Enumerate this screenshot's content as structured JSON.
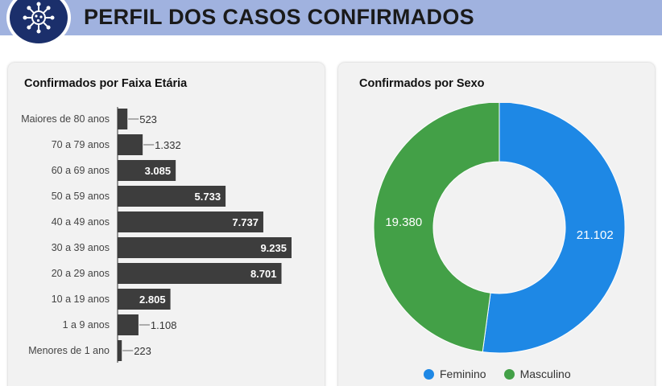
{
  "header": {
    "title": "PERFIL DOS CASOS CONFIRMADOS",
    "logo_icon": "virus-icon"
  },
  "colors": {
    "header_bg": "#a0b2df",
    "logo_bg": "#1b2f6b",
    "bar": "#3d3d3d",
    "feminino": "#1e88e5",
    "masculino": "#43a047"
  },
  "chart_data": [
    {
      "type": "bar",
      "orientation": "horizontal",
      "title": "Confirmados por Faixa Etária",
      "categories": [
        "Maiores de 80 anos",
        "70 a 79 anos",
        "60 a 69 anos",
        "50 a 59 anos",
        "40 a 49 anos",
        "30 a 39 anos",
        "20 a 29 anos",
        "10 a 19 anos",
        "1 a 9 anos",
        "Menores de 1 ano"
      ],
      "values": [
        523,
        1332,
        3085,
        5733,
        7737,
        9235,
        8701,
        2805,
        1108,
        223
      ],
      "value_labels": [
        "523",
        "1.332",
        "3.085",
        "5.733",
        "7.737",
        "9.235",
        "8.701",
        "2.805",
        "1.108",
        "223"
      ],
      "grid": false
    },
    {
      "type": "pie",
      "donut": true,
      "title": "Confirmados por Sexo",
      "categories": [
        "Feminino",
        "Masculino"
      ],
      "values": [
        21102,
        19380
      ],
      "value_labels": [
        "21.102",
        "19.380"
      ],
      "legend_position": "bottom"
    }
  ]
}
